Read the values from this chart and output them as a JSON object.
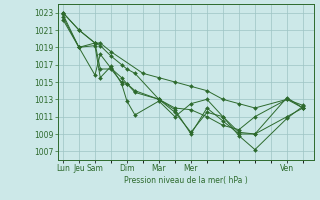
{
  "title": "",
  "xlabel": "Pression niveau de la mer( hPa )",
  "ylabel": "",
  "bg_color": "#cce8e8",
  "line_color": "#2d6a2d",
  "marker_color": "#2d6a2d",
  "ylim": [
    1006,
    1024
  ],
  "yticks": [
    1007,
    1009,
    1011,
    1013,
    1015,
    1017,
    1019,
    1021,
    1023
  ],
  "xtick_labels": [
    "Lun",
    "Jeu",
    "Sam",
    "Dim",
    "Mar",
    "Mer",
    "Ven"
  ],
  "series": [
    {
      "x": [
        0,
        12,
        24,
        28,
        36,
        44,
        48,
        54,
        72,
        84,
        96,
        108,
        120,
        132,
        144,
        168,
        180
      ],
      "y": [
        1023.0,
        1021.0,
        1019.5,
        1019.2,
        1018.0,
        1017.0,
        1016.5,
        1016.0,
        1013.0,
        1011.5,
        1009.2,
        1011.5,
        1011.0,
        1009.2,
        1009.0,
        1013.2,
        1012.0
      ]
    },
    {
      "x": [
        0,
        12,
        24,
        28,
        36,
        44,
        48,
        54,
        72,
        84,
        96,
        108,
        120,
        132,
        144,
        168,
        180
      ],
      "y": [
        1022.8,
        1019.0,
        1019.5,
        1016.5,
        1016.5,
        1015.0,
        1014.8,
        1013.8,
        1013.0,
        1012.0,
        1011.8,
        1011.0,
        1010.0,
        1009.5,
        1011.0,
        1013.0,
        1012.3
      ]
    },
    {
      "x": [
        0,
        12,
        24,
        28,
        36,
        44,
        48,
        54,
        72,
        84,
        96,
        108,
        120,
        132,
        144,
        168,
        180
      ],
      "y": [
        1022.5,
        1019.0,
        1019.2,
        1015.5,
        1016.8,
        1014.8,
        1012.8,
        1011.2,
        1012.8,
        1011.0,
        1012.5,
        1013.0,
        1011.0,
        1008.8,
        1007.2,
        1010.8,
        1012.2
      ]
    },
    {
      "x": [
        0,
        12,
        24,
        28,
        36,
        44,
        48,
        54,
        72,
        84,
        96,
        108,
        120,
        132,
        144,
        168,
        180
      ],
      "y": [
        1022.2,
        1019.0,
        1015.8,
        1018.2,
        1016.6,
        1015.5,
        1014.8,
        1014.0,
        1013.0,
        1011.8,
        1009.0,
        1012.0,
        1010.5,
        1009.0,
        1009.0,
        1011.0,
        1012.0
      ]
    },
    {
      "x": [
        0,
        12,
        24,
        28,
        36,
        60,
        72,
        84,
        96,
        108,
        120,
        132,
        144,
        168,
        180
      ],
      "y": [
        1023.0,
        1021.0,
        1019.5,
        1019.5,
        1018.5,
        1016.0,
        1015.5,
        1015.0,
        1014.5,
        1014.0,
        1013.0,
        1012.5,
        1012.0,
        1013.0,
        1012.0
      ]
    }
  ],
  "xlim": [
    -4,
    188
  ],
  "grid_color": "#9dc4c4",
  "grid_major_x": [
    0,
    12,
    24,
    36,
    48,
    60,
    72,
    84,
    96,
    108,
    120,
    132,
    144,
    156,
    168,
    180
  ],
  "day_tick_pos": [
    0,
    12,
    24,
    48,
    72,
    96,
    168
  ],
  "day_tick_labels": [
    "Lun",
    "Jeu",
    "Sam",
    "Dim",
    "Mar",
    "Mer",
    "Ven"
  ]
}
